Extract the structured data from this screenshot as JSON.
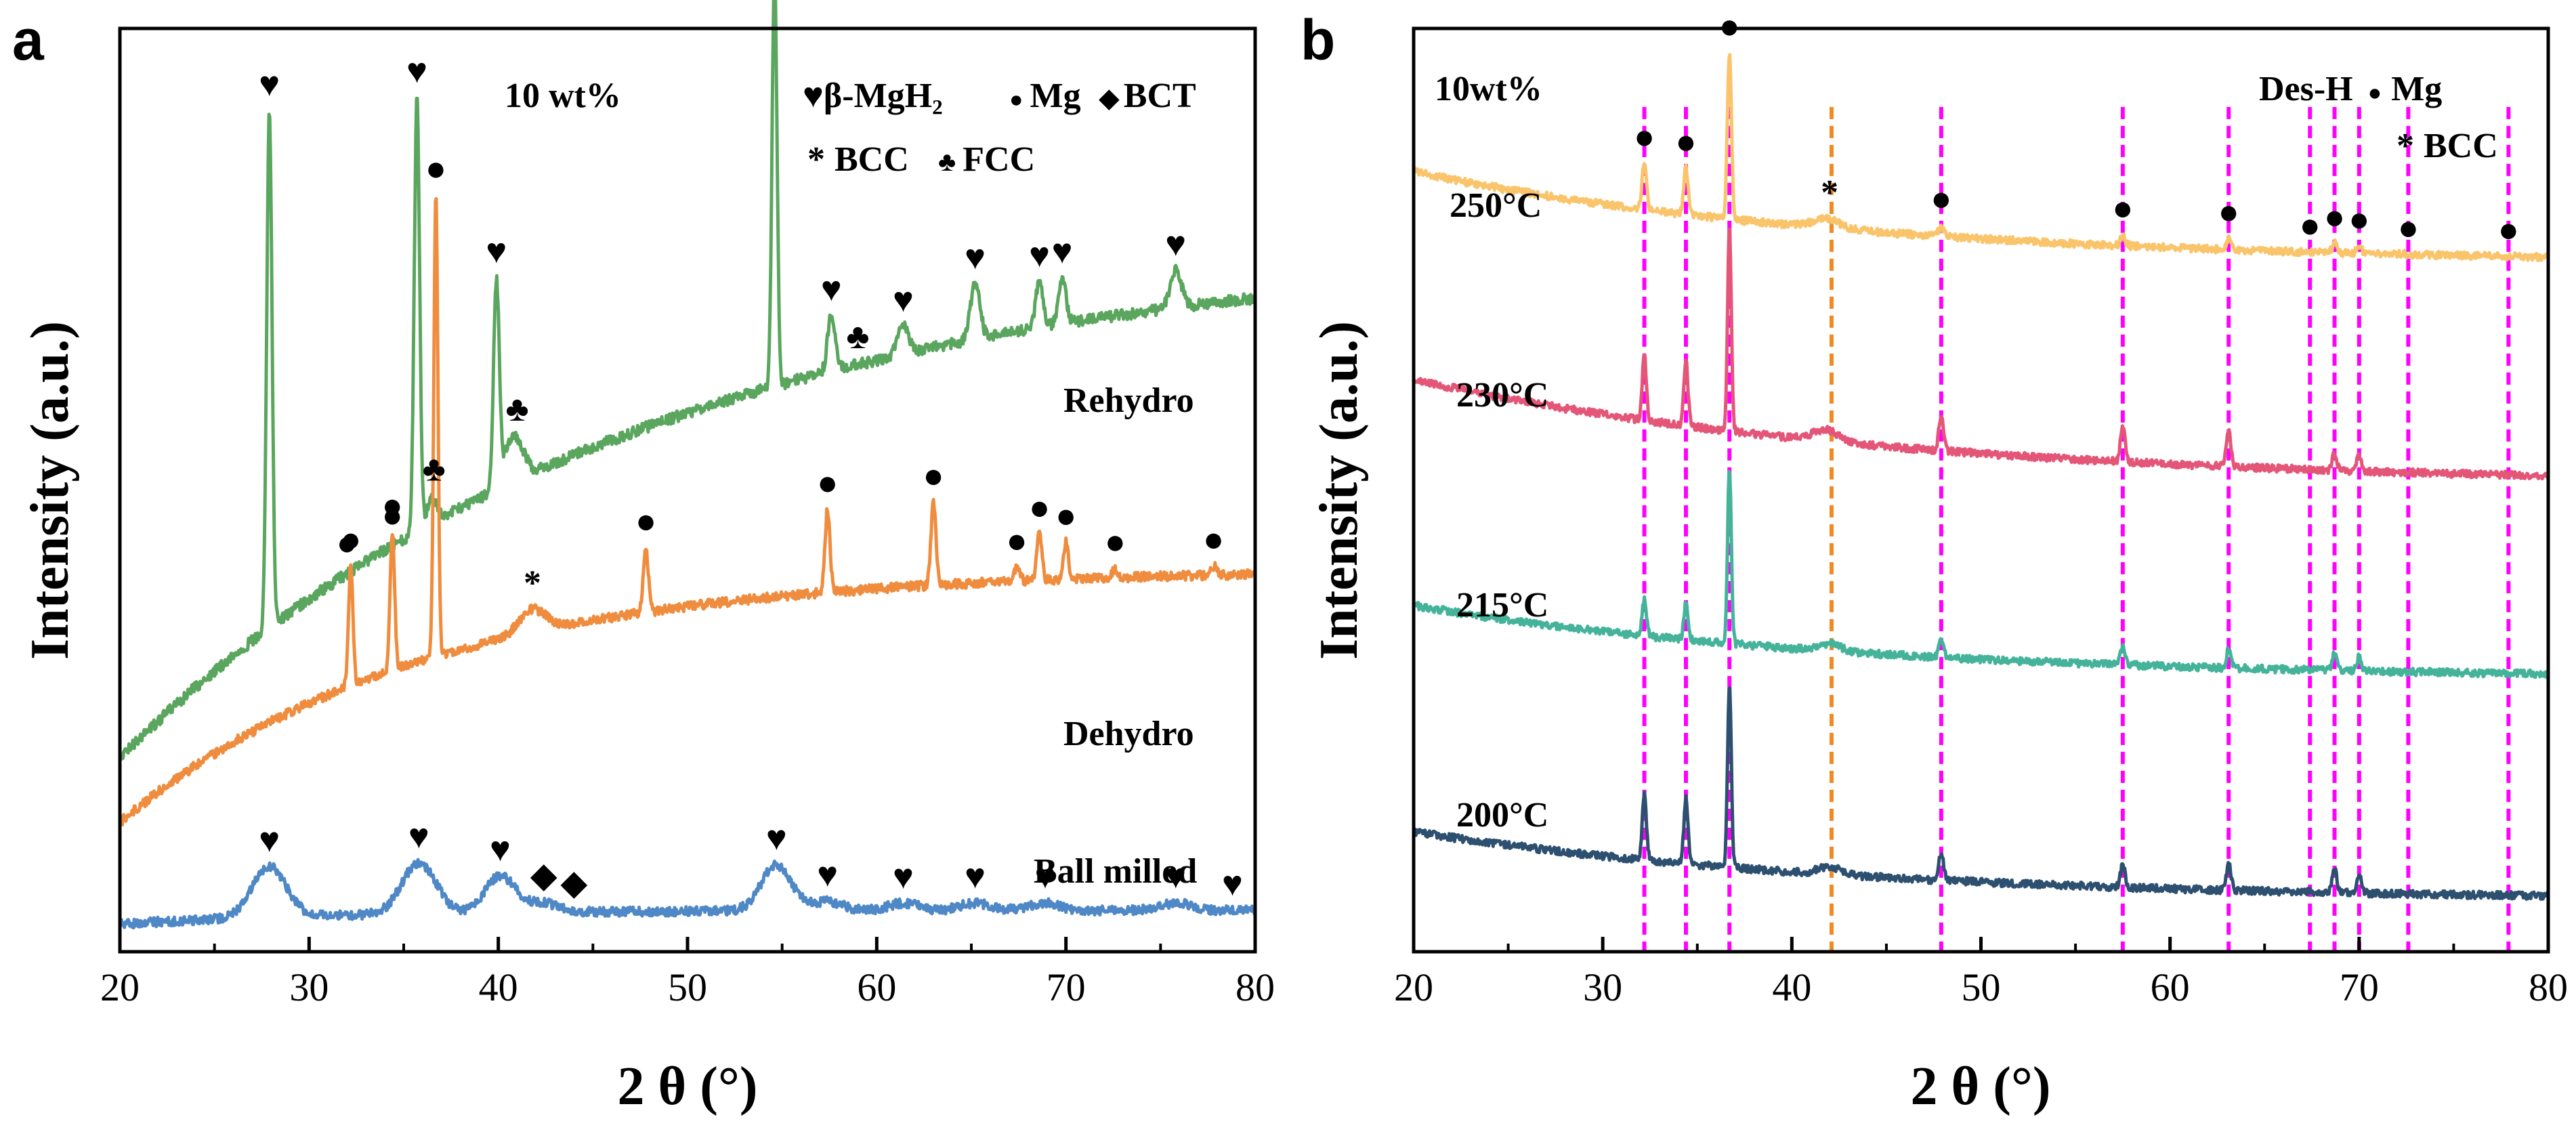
{
  "chart_data": [
    {
      "panel": "a",
      "type": "line",
      "xlabel": "2 θ (°)",
      "ylabel": "Intensity (a.u.)",
      "xlim": [
        20,
        80
      ],
      "xticks": [
        "20",
        "30",
        "40",
        "50",
        "60",
        "70",
        "80"
      ],
      "annotation": "10 wt%",
      "legend": [
        {
          "symbol": "♥",
          "text": "β-MgH₂"
        },
        {
          "symbol": "●",
          "text": "Mg"
        },
        {
          "symbol": "◆",
          "text": "BCT"
        },
        {
          "symbol": "*",
          "text": "BCC"
        },
        {
          "symbol": "♣",
          "text": "FCC"
        }
      ],
      "series": [
        {
          "name": "Rehydro",
          "color": "#5aa65e",
          "baseline": 0.23,
          "start": 0.79,
          "decay": 2.2,
          "noise": 0.006,
          "peaks": [
            [
              27.9,
              0.56,
              0.14
            ],
            [
              35.7,
              0.47,
              0.14
            ],
            [
              39.9,
              0.22,
              0.15
            ],
            [
              40.8,
              0.05,
              0.5
            ],
            [
              54.6,
              0.45,
              0.13
            ],
            [
              57.6,
              0.06,
              0.2
            ],
            [
              61.4,
              0.03,
              0.3
            ],
            [
              65.2,
              0.06,
              0.25
            ],
            [
              68.6,
              0.05,
              0.2
            ],
            [
              69.8,
              0.05,
              0.2
            ],
            [
              75.8,
              0.04,
              0.3
            ],
            [
              36.5,
              0.03,
              0.25
            ]
          ],
          "markers": [
            [
              "♥",
              27.9
            ],
            [
              "♥",
              35.7
            ],
            [
              "♥",
              39.9
            ],
            [
              "♥",
              54.6
            ],
            [
              "♥",
              57.6
            ],
            [
              "♥",
              61.4
            ],
            [
              "♥",
              65.2
            ],
            [
              "♥",
              68.6
            ],
            [
              "♥",
              69.8
            ],
            [
              "♥",
              75.8
            ],
            [
              "●",
              32.0
            ],
            [
              "●",
              34.4
            ],
            [
              "♣",
              36.6
            ],
            [
              "♣",
              41.0
            ],
            [
              "♣",
              59.0
            ]
          ]
        },
        {
          "name": "Dehydro",
          "color": "#ef8c3e",
          "baseline": 0.585,
          "start": 0.86,
          "decay": 3.8,
          "noise": 0.005,
          "peaks": [
            [
              32.2,
              0.13,
              0.12
            ],
            [
              34.4,
              0.15,
              0.12
            ],
            [
              36.7,
              0.5,
              0.11
            ],
            [
              41.8,
              0.025,
              0.7
            ],
            [
              47.8,
              0.07,
              0.13
            ],
            [
              57.4,
              0.09,
              0.13
            ],
            [
              63.0,
              0.09,
              0.13
            ],
            [
              67.4,
              0.015,
              0.15
            ],
            [
              68.6,
              0.05,
              0.13
            ],
            [
              70.0,
              0.04,
              0.13
            ],
            [
              72.6,
              0.01,
              0.15
            ],
            [
              77.8,
              0.01,
              0.15
            ]
          ],
          "markers": [
            [
              "●",
              32.2
            ],
            [
              "●",
              34.4
            ],
            [
              "●",
              36.7
            ],
            [
              "*",
              41.8
            ],
            [
              "●",
              47.8
            ],
            [
              "●",
              57.4
            ],
            [
              "●",
              63.0
            ],
            [
              "●",
              67.4
            ],
            [
              "●",
              68.6
            ],
            [
              "●",
              70.0
            ],
            [
              "●",
              72.6
            ],
            [
              "●",
              77.8
            ]
          ]
        },
        {
          "name": "Ball milled",
          "color": "#4f88c6",
          "baseline": 0.955,
          "start": 0.97,
          "decay": 5,
          "noise": 0.005,
          "peaks": [
            [
              27.9,
              0.055,
              0.9
            ],
            [
              35.8,
              0.055,
              0.9
            ],
            [
              40.1,
              0.04,
              0.8
            ],
            [
              42.4,
              0.01,
              0.8
            ],
            [
              54.7,
              0.05,
              0.8
            ],
            [
              57.4,
              0.01,
              0.8
            ],
            [
              61.4,
              0.008,
              0.8
            ],
            [
              65.2,
              0.008,
              0.8
            ],
            [
              68.8,
              0.008,
              0.8
            ],
            [
              75.8,
              0.008,
              0.8
            ]
          ],
          "markers": [
            [
              "♥",
              27.9
            ],
            [
              "♥",
              35.8
            ],
            [
              "♥",
              40.1
            ],
            [
              "◆",
              42.4
            ],
            [
              "◆",
              44.0
            ],
            [
              "♥",
              54.7
            ],
            [
              "♥",
              57.4
            ],
            [
              "♥",
              61.4
            ],
            [
              "♥",
              65.2
            ],
            [
              "♥",
              68.9
            ],
            [
              "♥",
              75.8
            ],
            [
              "♥",
              78.8
            ]
          ]
        }
      ]
    },
    {
      "panel": "b",
      "type": "line",
      "xlabel": "2 θ (°)",
      "ylabel": "Intensity (a.u.)",
      "xlim": [
        20,
        80
      ],
      "xticks": [
        "20",
        "30",
        "40",
        "50",
        "60",
        "70",
        "80"
      ],
      "annotation": "10wt%",
      "legend": [
        {
          "symbol": "",
          "text": "Des-H"
        },
        {
          "symbol": "●",
          "text": "Mg"
        },
        {
          "symbol": "*",
          "text": "BCC"
        }
      ],
      "reference_lines": {
        "Mg": {
          "color": "#ff00ff",
          "positions": [
            32.2,
            34.4,
            36.7,
            47.9,
            57.5,
            63.1,
            67.4,
            68.7,
            70.0,
            72.6,
            77.9
          ]
        },
        "BCC": {
          "color": "#f08a24",
          "positions": [
            42.1
          ]
        }
      },
      "series": [
        {
          "name": "250°C",
          "color": "#fac46b",
          "baseline": 0.255,
          "start": 0.155,
          "decay": 2.6,
          "noise": 0.004,
          "peaks": [
            [
              32.2,
              0.05,
              0.12
            ],
            [
              34.4,
              0.05,
              0.12
            ],
            [
              36.7,
              0.18,
              0.11
            ],
            [
              41.8,
              0.01,
              0.7
            ],
            [
              47.9,
              0.012,
              0.13
            ],
            [
              57.5,
              0.012,
              0.13
            ],
            [
              63.1,
              0.012,
              0.13
            ],
            [
              68.7,
              0.01,
              0.13
            ],
            [
              70.0,
              0.008,
              0.13
            ]
          ],
          "markers": [
            [
              "●",
              32.2
            ],
            [
              "●",
              34.4
            ],
            [
              "●",
              36.7
            ],
            [
              "*",
              42.0
            ],
            [
              "●",
              47.9
            ],
            [
              "●",
              57.5
            ],
            [
              "●",
              63.1
            ],
            [
              "●",
              67.4
            ],
            [
              "●",
              68.7
            ],
            [
              "●",
              70.0
            ],
            [
              "●",
              72.6
            ],
            [
              "●",
              77.9
            ]
          ]
        },
        {
          "name": "230°C",
          "color": "#e45678",
          "baseline": 0.495,
          "start": 0.38,
          "decay": 2.4,
          "noise": 0.004,
          "peaks": [
            [
              32.2,
              0.07,
              0.11
            ],
            [
              34.4,
              0.07,
              0.11
            ],
            [
              36.7,
              0.22,
              0.1
            ],
            [
              41.8,
              0.012,
              0.7
            ],
            [
              47.9,
              0.04,
              0.12
            ],
            [
              57.5,
              0.04,
              0.12
            ],
            [
              63.1,
              0.04,
              0.12
            ],
            [
              68.7,
              0.02,
              0.12
            ],
            [
              70.0,
              0.018,
              0.12
            ]
          ],
          "markers": []
        },
        {
          "name": "215°C",
          "color": "#44b39a",
          "baseline": 0.705,
          "start": 0.625,
          "decay": 2.6,
          "noise": 0.004,
          "peaks": [
            [
              32.2,
              0.04,
              0.11
            ],
            [
              34.4,
              0.04,
              0.11
            ],
            [
              36.7,
              0.19,
              0.1
            ],
            [
              42.0,
              0.008,
              0.6
            ],
            [
              47.9,
              0.02,
              0.12
            ],
            [
              57.5,
              0.02,
              0.12
            ],
            [
              63.1,
              0.02,
              0.12
            ],
            [
              68.7,
              0.02,
              0.12
            ],
            [
              70.0,
              0.015,
              0.12
            ]
          ],
          "markers": []
        },
        {
          "name": "200°C",
          "color": "#2d4f70",
          "baseline": 0.945,
          "start": 0.87,
          "decay": 2.6,
          "noise": 0.004,
          "peaks": [
            [
              32.2,
              0.07,
              0.11
            ],
            [
              34.4,
              0.07,
              0.11
            ],
            [
              36.7,
              0.2,
              0.1
            ],
            [
              42.0,
              0.008,
              0.6
            ],
            [
              47.9,
              0.03,
              0.12
            ],
            [
              57.5,
              0.025,
              0.12
            ],
            [
              63.1,
              0.03,
              0.12
            ],
            [
              68.7,
              0.025,
              0.12
            ],
            [
              70.0,
              0.02,
              0.12
            ]
          ],
          "markers": []
        }
      ]
    }
  ]
}
